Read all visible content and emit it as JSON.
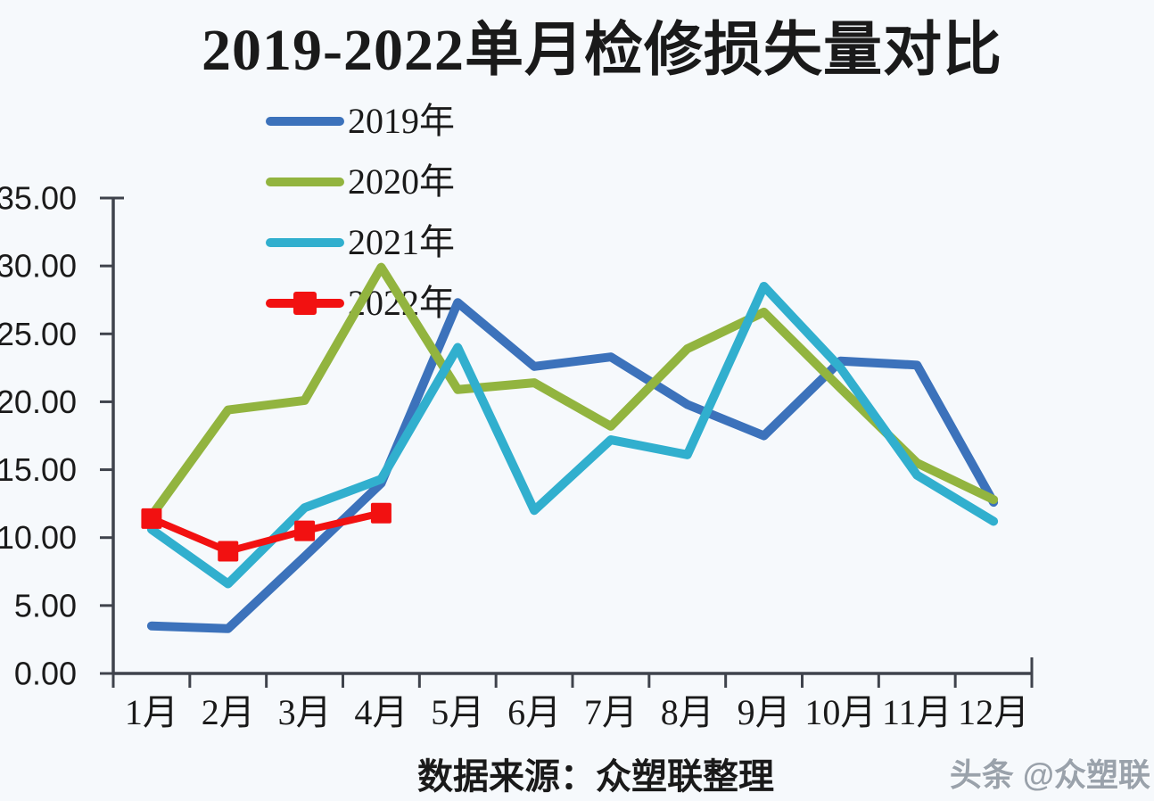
{
  "page": {
    "background": "#F6F9FC",
    "text_color": "#1A1A1A",
    "axis_color": "#3F434C",
    "watermark_color": "#9AA2AB"
  },
  "title": "2019-2022单月检修损失量对比",
  "source_note": "数据来源：众塑联整理",
  "watermark": "头条 @众塑联",
  "chart_data": {
    "type": "line",
    "title": "2019-2022单月检修损失量对比",
    "categories": [
      "1月",
      "2月",
      "3月",
      "4月",
      "5月",
      "6月",
      "7月",
      "8月",
      "9月",
      "10月",
      "11月",
      "12月"
    ],
    "series": [
      {
        "name": "2019年",
        "color": "#3C72BB",
        "marker": "none",
        "values": [
          3.5,
          3.3,
          8.6,
          14.0,
          27.3,
          22.6,
          23.3,
          19.8,
          17.5,
          23.0,
          22.7,
          12.6
        ]
      },
      {
        "name": "2020年",
        "color": "#92B43F",
        "marker": "none",
        "values": [
          11.6,
          19.4,
          20.1,
          29.9,
          20.9,
          21.4,
          18.2,
          23.9,
          26.6,
          21.0,
          15.5,
          12.8
        ]
      },
      {
        "name": "2021年",
        "color": "#31AFCE",
        "marker": "none",
        "values": [
          10.6,
          6.6,
          12.2,
          14.3,
          24.0,
          12.0,
          17.2,
          16.1,
          28.5,
          22.5,
          14.6,
          11.2
        ]
      },
      {
        "name": "2022年",
        "color": "#F21111",
        "marker": "square",
        "values": [
          11.4,
          9.0,
          10.5,
          11.8
        ]
      }
    ],
    "xlabel": "",
    "ylabel": "",
    "ylim": [
      0,
      35
    ],
    "y_axis": {
      "min": 0,
      "max": 35,
      "step": 5,
      "tick_labels": [
        "0.00",
        "5.00",
        "10.00",
        "15.00",
        "20.00",
        "25.00",
        "30.00",
        "35.00"
      ]
    },
    "grid": false,
    "legend_position": "top-left"
  }
}
